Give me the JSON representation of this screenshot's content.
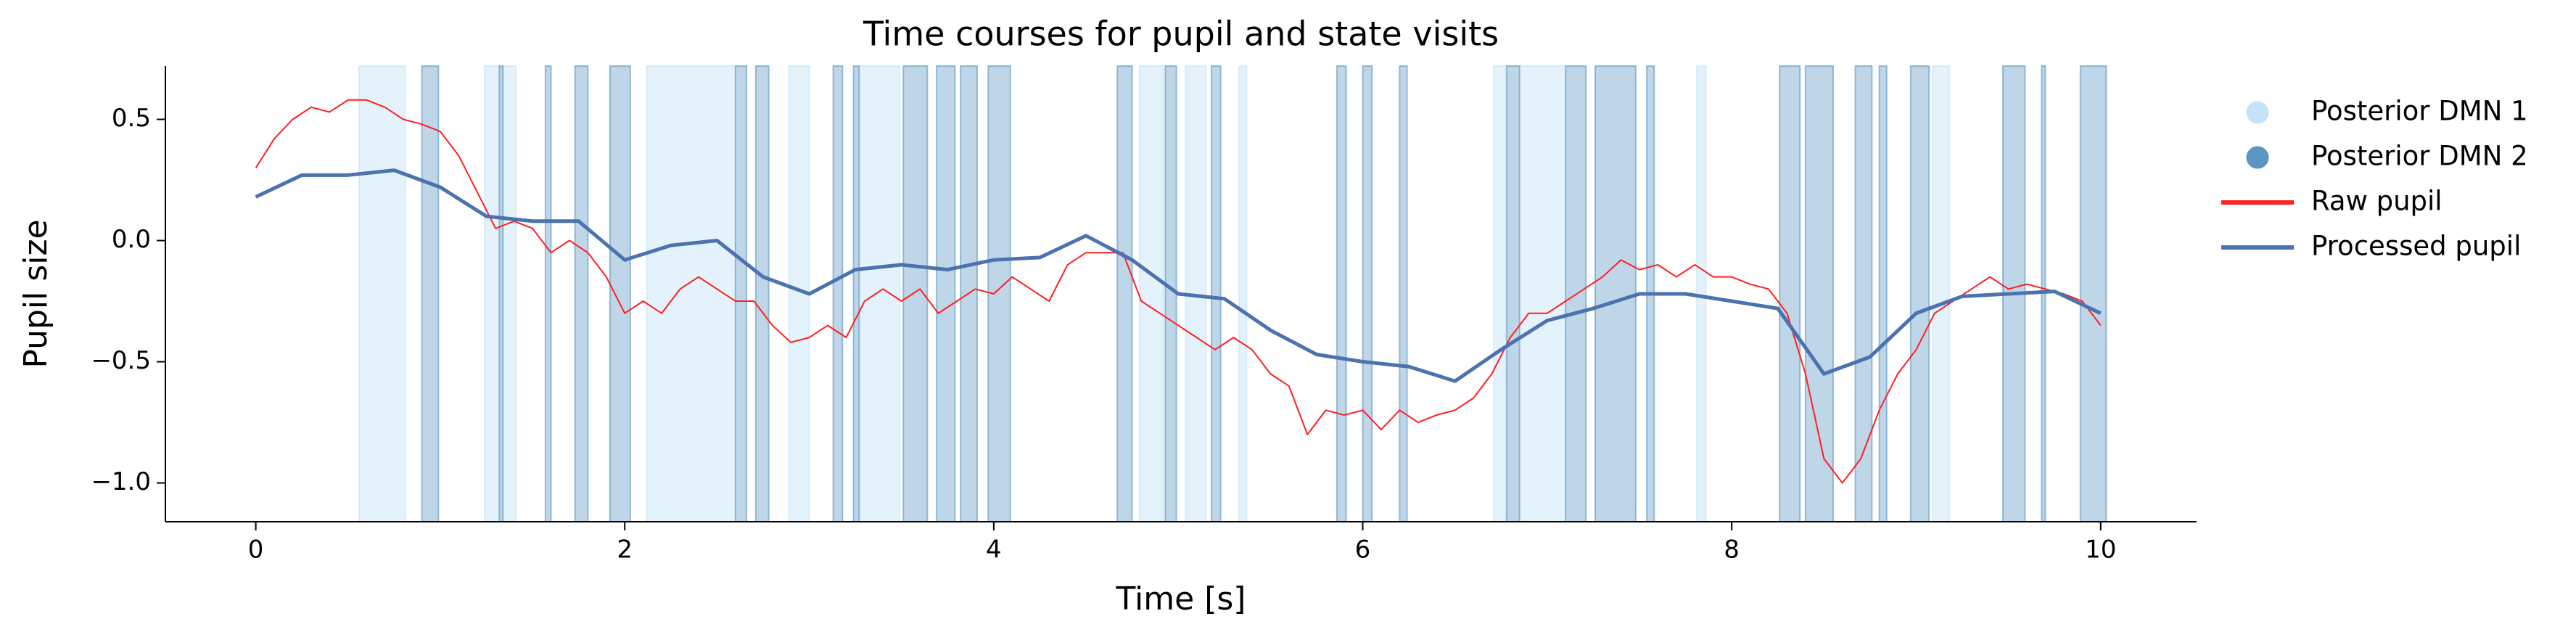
{
  "chart_data": {
    "type": "line",
    "title": "Time courses for pupil and state visits",
    "x_label": "Time [s]",
    "y_label": "Pupil size",
    "xlim": [
      -0.49,
      10.52
    ],
    "ylim": [
      -1.16,
      0.72
    ],
    "xticks": [
      0,
      2,
      4,
      6,
      8,
      10
    ],
    "yticks": [
      {
        "value": -1,
        "label": "−1.0"
      },
      {
        "value": -0.5,
        "label": "−0.5"
      },
      {
        "value": 0,
        "label": "0.0"
      },
      {
        "value": 0.5,
        "label": "0.5"
      }
    ],
    "spans": [
      {
        "name": "Posterior DMN 1",
        "color": "#c6e2f7",
        "fill": "#e4f2fc",
        "intervals": [
          [
            0.56,
            0.81
          ],
          [
            1.24,
            1.41
          ],
          [
            2.12,
            2.6
          ],
          [
            2.89,
            3.0
          ],
          [
            3.27,
            3.49
          ],
          [
            4.79,
            4.92
          ],
          [
            5.04,
            5.15
          ],
          [
            5.33,
            5.37
          ],
          [
            6.71,
            7.1
          ],
          [
            7.81,
            7.86
          ],
          [
            9.09,
            9.18
          ]
        ]
      },
      {
        "name": "Posterior DMN 2",
        "color": "#5b96c2",
        "fill": "#bfd6e8",
        "intervals": [
          [
            0.9,
            0.99
          ],
          [
            1.32,
            1.34
          ],
          [
            1.57,
            1.6
          ],
          [
            1.73,
            1.8
          ],
          [
            1.92,
            2.03
          ],
          [
            2.6,
            2.66
          ],
          [
            2.71,
            2.78
          ],
          [
            3.13,
            3.18
          ],
          [
            3.24,
            3.27
          ],
          [
            3.51,
            3.64
          ],
          [
            3.69,
            3.79
          ],
          [
            3.82,
            3.91
          ],
          [
            3.97,
            4.09
          ],
          [
            4.67,
            4.75
          ],
          [
            4.93,
            4.99
          ],
          [
            5.18,
            5.23
          ],
          [
            5.86,
            5.91
          ],
          [
            6.0,
            6.05
          ],
          [
            6.2,
            6.24
          ],
          [
            6.78,
            6.85
          ],
          [
            7.1,
            7.21
          ],
          [
            7.26,
            7.48
          ],
          [
            7.54,
            7.58
          ],
          [
            8.26,
            8.37
          ],
          [
            8.4,
            8.55
          ],
          [
            8.67,
            8.76
          ],
          [
            8.8,
            8.84
          ],
          [
            8.97,
            9.07
          ],
          [
            9.47,
            9.59
          ],
          [
            9.68,
            9.7
          ],
          [
            9.89,
            10.03
          ]
        ]
      }
    ],
    "series": [
      {
        "name": "Raw pupil",
        "color": "#ff2020",
        "width": 2,
        "x": [
          0,
          0.1,
          0.2,
          0.3,
          0.4,
          0.5,
          0.6,
          0.7,
          0.8,
          0.9,
          1,
          1.1,
          1.2,
          1.3,
          1.4,
          1.5,
          1.6,
          1.7,
          1.8,
          1.9,
          2,
          2.1,
          2.2,
          2.3,
          2.4,
          2.5,
          2.6,
          2.7,
          2.8,
          2.9,
          3,
          3.1,
          3.2,
          3.3,
          3.4,
          3.5,
          3.6,
          3.7,
          3.8,
          3.9,
          4,
          4.1,
          4.2,
          4.3,
          4.4,
          4.5,
          4.6,
          4.7,
          4.8,
          4.9,
          5,
          5.1,
          5.2,
          5.3,
          5.4,
          5.5,
          5.6,
          5.7,
          5.8,
          5.9,
          6,
          6.1,
          6.2,
          6.3,
          6.4,
          6.5,
          6.6,
          6.7,
          6.8,
          6.9,
          7,
          7.1,
          7.2,
          7.3,
          7.4,
          7.5,
          7.6,
          7.7,
          7.8,
          7.9,
          8,
          8.1,
          8.2,
          8.3,
          8.4,
          8.5,
          8.6,
          8.7,
          8.8,
          8.9,
          9,
          9.1,
          9.2,
          9.3,
          9.4,
          9.5,
          9.6,
          9.7,
          9.8,
          9.9,
          10
        ],
        "values": [
          0.3,
          0.42,
          0.5,
          0.55,
          0.53,
          0.58,
          0.58,
          0.55,
          0.5,
          0.48,
          0.45,
          0.35,
          0.2,
          0.05,
          0.08,
          0.05,
          -0.05,
          0.0,
          -0.05,
          -0.15,
          -0.3,
          -0.25,
          -0.3,
          -0.2,
          -0.15,
          -0.2,
          -0.25,
          -0.25,
          -0.35,
          -0.42,
          -0.4,
          -0.35,
          -0.4,
          -0.25,
          -0.2,
          -0.25,
          -0.2,
          -0.3,
          -0.25,
          -0.2,
          -0.22,
          -0.15,
          -0.2,
          -0.25,
          -0.1,
          -0.05,
          -0.05,
          -0.05,
          -0.25,
          -0.3,
          -0.35,
          -0.4,
          -0.45,
          -0.4,
          -0.45,
          -0.55,
          -0.6,
          -0.8,
          -0.7,
          -0.72,
          -0.7,
          -0.78,
          -0.7,
          -0.75,
          -0.72,
          -0.7,
          -0.65,
          -0.55,
          -0.4,
          -0.3,
          -0.3,
          -0.25,
          -0.2,
          -0.15,
          -0.08,
          -0.12,
          -0.1,
          -0.15,
          -0.1,
          -0.15,
          -0.15,
          -0.18,
          -0.2,
          -0.3,
          -0.55,
          -0.9,
          -1.0,
          -0.9,
          -0.7,
          -0.55,
          -0.45,
          -0.3,
          -0.25,
          -0.2,
          -0.15,
          -0.2,
          -0.18,
          -0.2,
          -0.22,
          -0.25,
          -0.35
        ]
      },
      {
        "name": "Processed pupil",
        "color": "#4c72b0",
        "width": 5,
        "x": [
          0,
          0.25,
          0.5,
          0.75,
          1,
          1.25,
          1.5,
          1.75,
          2,
          2.25,
          2.5,
          2.75,
          3,
          3.25,
          3.5,
          3.75,
          4,
          4.25,
          4.5,
          4.75,
          5,
          5.25,
          5.5,
          5.75,
          6,
          6.25,
          6.5,
          6.75,
          7,
          7.25,
          7.5,
          7.75,
          8,
          8.25,
          8.5,
          8.75,
          9,
          9.25,
          9.5,
          9.75,
          10
        ],
        "values": [
          0.18,
          0.27,
          0.27,
          0.29,
          0.22,
          0.1,
          0.08,
          0.08,
          -0.08,
          -0.02,
          0.0,
          -0.15,
          -0.22,
          -0.12,
          -0.1,
          -0.12,
          -0.08,
          -0.07,
          0.02,
          -0.08,
          -0.22,
          -0.24,
          -0.37,
          -0.47,
          -0.5,
          -0.52,
          -0.58,
          -0.45,
          -0.33,
          -0.28,
          -0.22,
          -0.22,
          -0.25,
          -0.28,
          -0.55,
          -0.48,
          -0.3,
          -0.23,
          -0.22,
          -0.21,
          -0.3
        ]
      }
    ]
  }
}
